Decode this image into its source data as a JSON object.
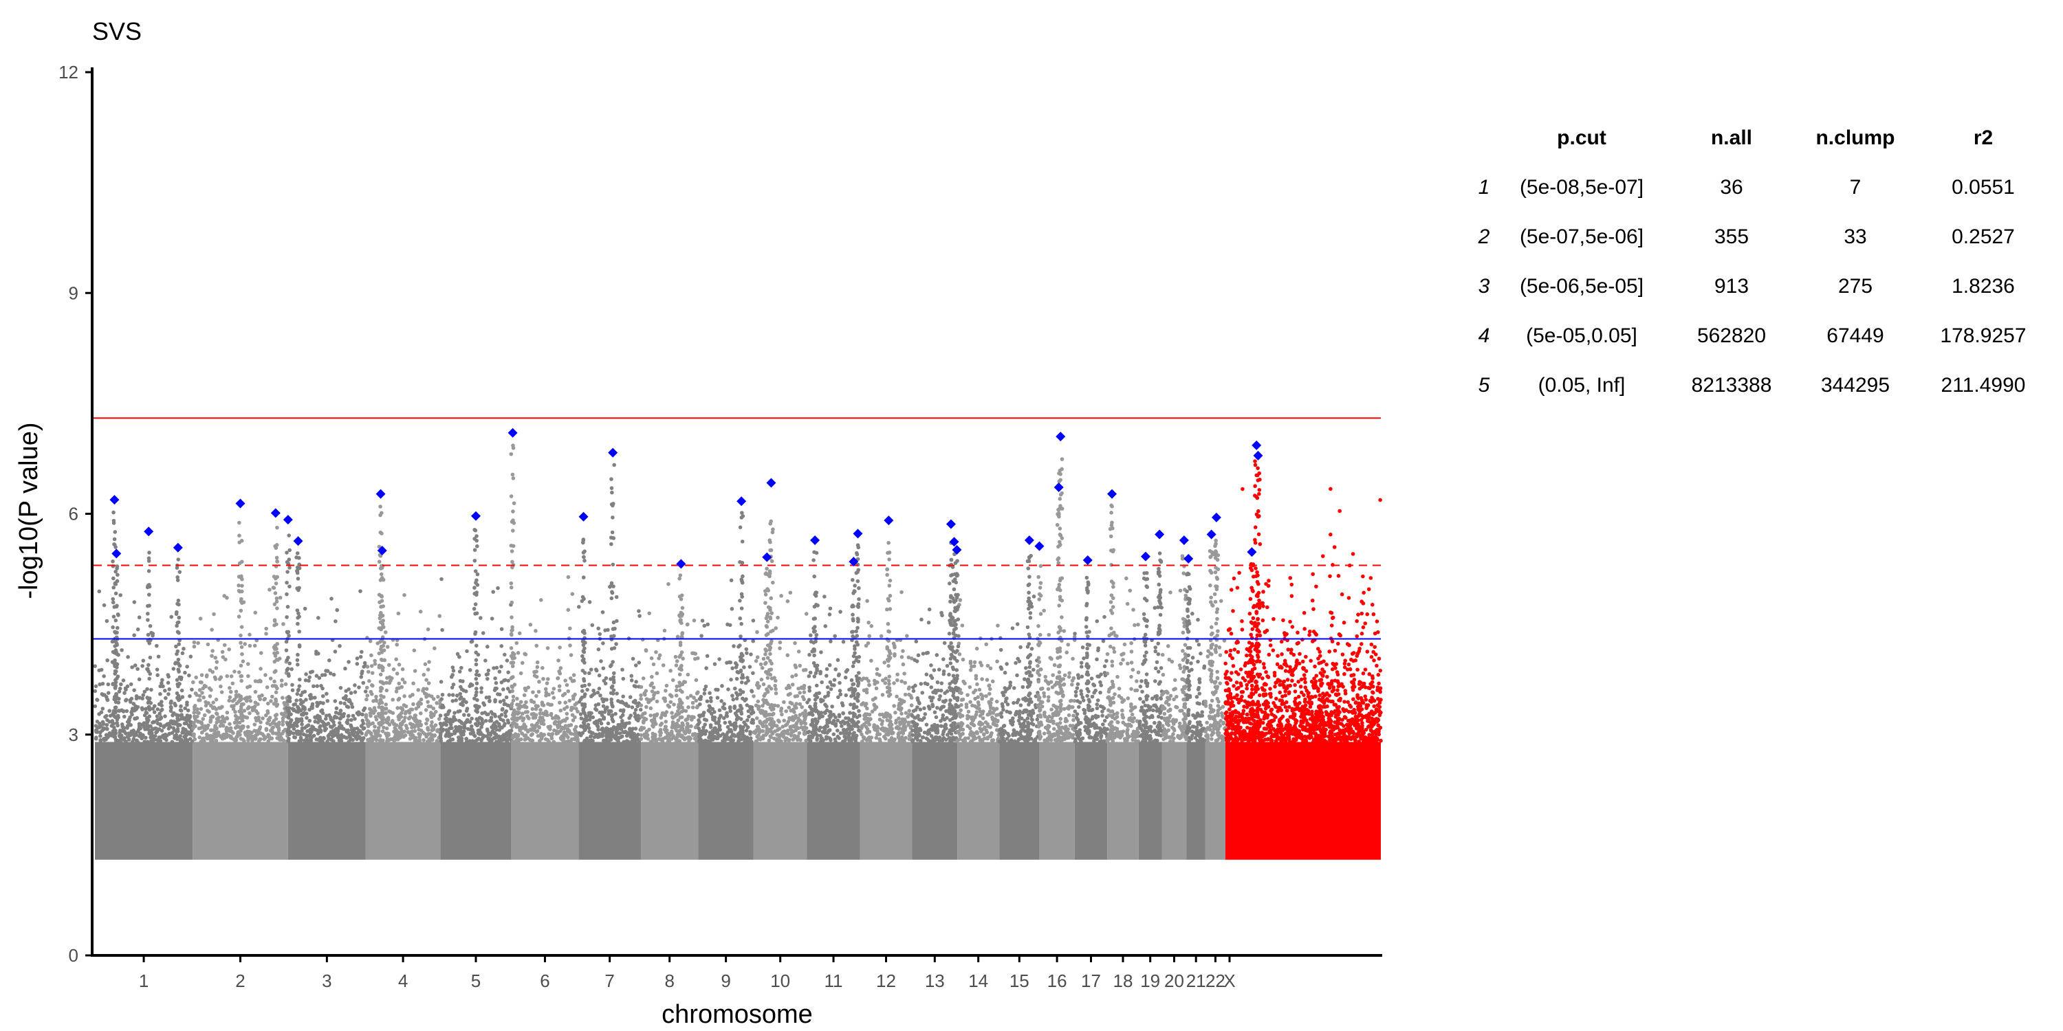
{
  "chart_data": {
    "type": "scatter",
    "subtype": "manhattan",
    "title": "SVS",
    "xlabel": "chromosome",
    "ylabel": "-log10(P value)",
    "ylim": [
      0,
      12
    ],
    "y_ticks": [
      0,
      3,
      6,
      9,
      12
    ],
    "grid": false,
    "x_tick_labels": [
      "1",
      "2",
      "3",
      "4",
      "5",
      "6",
      "7",
      "8",
      "9",
      "10",
      "11",
      "12",
      "13",
      "14",
      "15",
      "16",
      "17",
      "18",
      "19",
      "20",
      "21",
      "22",
      "X"
    ],
    "chromosome_relative_lengths": [
      249,
      243,
      198,
      190,
      181,
      171,
      159,
      146,
      141,
      136,
      135,
      133,
      115,
      107,
      102,
      90,
      83,
      80,
      59,
      63,
      48,
      51,
      155
    ],
    "chromosome_colors": [
      "#808080",
      "#999999"
    ],
    "highlight_region_color": "#ff0000",
    "lead_snp_color": "#0000ff",
    "reference_lines": [
      {
        "y": 7.3,
        "color": "#ff0000",
        "style": "solid"
      },
      {
        "y": 5.3,
        "color": "#ff0000",
        "style": "dashed"
      },
      {
        "y": 4.3,
        "color": "#0000ff",
        "style": "solid"
      }
    ],
    "floor": 1.3,
    "lead_snps": [
      {
        "chr": "1",
        "pos": 0.2,
        "y": 6.19
      },
      {
        "chr": "1",
        "pos": 0.22,
        "y": 5.46
      },
      {
        "chr": "1",
        "pos": 0.55,
        "y": 5.76
      },
      {
        "chr": "1",
        "pos": 0.85,
        "y": 5.54
      },
      {
        "chr": "2",
        "pos": 0.5,
        "y": 6.14
      },
      {
        "chr": "2",
        "pos": 0.87,
        "y": 6.01
      },
      {
        "chr": "3",
        "pos": 0.0,
        "y": 5.92
      },
      {
        "chr": "3",
        "pos": 0.13,
        "y": 5.63
      },
      {
        "chr": "4",
        "pos": 0.2,
        "y": 6.27
      },
      {
        "chr": "4",
        "pos": 0.22,
        "y": 5.5
      },
      {
        "chr": "5",
        "pos": 0.5,
        "y": 5.97
      },
      {
        "chr": "6",
        "pos": 0.02,
        "y": 7.1
      },
      {
        "chr": "7",
        "pos": 0.08,
        "y": 5.96
      },
      {
        "chr": "7",
        "pos": 0.55,
        "y": 6.83
      },
      {
        "chr": "8",
        "pos": 0.7,
        "y": 5.32
      },
      {
        "chr": "9",
        "pos": 0.78,
        "y": 6.17
      },
      {
        "chr": "10",
        "pos": 0.25,
        "y": 5.41
      },
      {
        "chr": "10",
        "pos": 0.33,
        "y": 6.42
      },
      {
        "chr": "11",
        "pos": 0.15,
        "y": 5.64
      },
      {
        "chr": "11",
        "pos": 0.88,
        "y": 5.35
      },
      {
        "chr": "11",
        "pos": 0.96,
        "y": 5.73
      },
      {
        "chr": "12",
        "pos": 0.55,
        "y": 5.91
      },
      {
        "chr": "13",
        "pos": 0.86,
        "y": 5.86
      },
      {
        "chr": "13",
        "pos": 0.93,
        "y": 5.62
      },
      {
        "chr": "13",
        "pos": 0.99,
        "y": 5.51
      },
      {
        "chr": "15",
        "pos": 0.75,
        "y": 5.64
      },
      {
        "chr": "16",
        "pos": 0.0,
        "y": 5.56
      },
      {
        "chr": "16",
        "pos": 0.55,
        "y": 6.36
      },
      {
        "chr": "16",
        "pos": 0.6,
        "y": 7.05
      },
      {
        "chr": "17",
        "pos": 0.4,
        "y": 5.37
      },
      {
        "chr": "18",
        "pos": 0.15,
        "y": 6.27
      },
      {
        "chr": "19",
        "pos": 0.3,
        "y": 5.42
      },
      {
        "chr": "19",
        "pos": 0.9,
        "y": 5.72
      },
      {
        "chr": "20",
        "pos": 0.9,
        "y": 5.64
      },
      {
        "chr": "21",
        "pos": 0.1,
        "y": 5.39
      },
      {
        "chr": "22",
        "pos": 0.3,
        "y": 5.72
      },
      {
        "chr": "22",
        "pos": 0.55,
        "y": 5.95
      },
      {
        "chr": "X",
        "pos": 0.17,
        "y": 5.48
      },
      {
        "chr": "X",
        "pos": 0.2,
        "y": 6.93
      },
      {
        "chr": "X",
        "pos": 0.21,
        "y": 6.79
      }
    ],
    "summary_table": {
      "columns": [
        "p.cut",
        "n.all",
        "n.clump",
        "r2"
      ],
      "rows": [
        {
          "index": "1",
          "p_cut": "(5e-08,5e-07]",
          "n_all": "36",
          "n_clump": "7",
          "r2": "0.0551"
        },
        {
          "index": "2",
          "p_cut": "(5e-07,5e-06]",
          "n_all": "355",
          "n_clump": "33",
          "r2": "0.2527"
        },
        {
          "index": "3",
          "p_cut": "(5e-06,5e-05]",
          "n_all": "913",
          "n_clump": "275",
          "r2": "1.8236"
        },
        {
          "index": "4",
          "p_cut": "(5e-05,0.05]",
          "n_all": "562820",
          "n_clump": "67449",
          "r2": "178.9257"
        },
        {
          "index": "5",
          "p_cut": "(0.05, Inf]",
          "n_all": "8213388",
          "n_clump": "344295",
          "r2": "211.4990"
        }
      ]
    }
  }
}
